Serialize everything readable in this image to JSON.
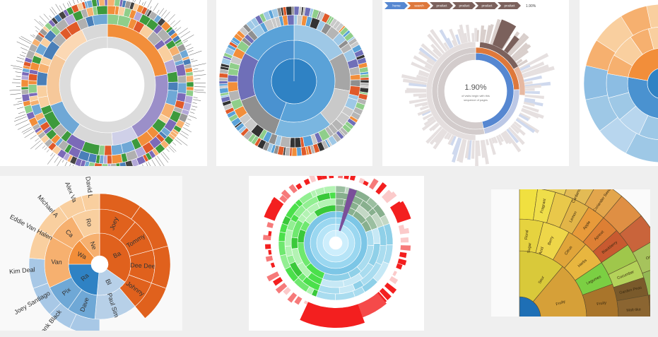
{
  "chart_data": [
    {
      "type": "sunburst",
      "name_shown": false
    },
    {
      "type": "sunburst"
    },
    {
      "type": "sunburst",
      "breadcrumb": [
        "home",
        "search",
        "product",
        "product",
        "product",
        "product"
      ],
      "breadcrumb_value": "1.90%",
      "center_value": "1.90%",
      "center_caption": [
        "of visits begin with this",
        "sequence of pages"
      ]
    },
    {
      "type": "sunburst"
    },
    {
      "type": "sunburst",
      "inner": [
        "Ba",
        "Ra",
        "Wa",
        "Ne",
        "Bl"
      ],
      "middle": [
        "Joey",
        "Tommy",
        "Dee Dee",
        "Johnny",
        "Paul Sim",
        "Dave",
        "Pix",
        "Ca",
        "Van",
        "Ro"
      ],
      "outer": [
        "David L",
        "Alex Va",
        "Michael A",
        "Eddie Van Halen",
        "Kim Deal",
        "Joey Santiago",
        "Frank Black",
        "Davi"
      ]
    },
    {
      "type": "sunburst"
    },
    {
      "type": "sunburst",
      "labels": [
        "Sour",
        "Fruity",
        "Floral",
        "Berry",
        "Citrus",
        "Herbs",
        "Legumes",
        "Fruity",
        "Fragrant",
        "Coffee Blossom",
        "Tea Rose",
        "Cardamom Caraway",
        "Coriander Seeds",
        "Lemon",
        "Apple",
        "Apricot",
        "Blackberry",
        "Onion",
        "Garlic",
        "Cucumber",
        "Garden Peas",
        "Nut-like",
        "Malt-like",
        "Acid",
        "Sugar"
      ]
    }
  ]
}
